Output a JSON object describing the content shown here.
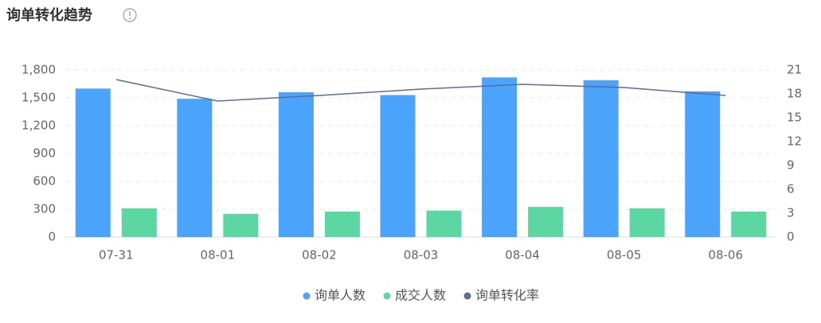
{
  "chart_data": {
    "type": "bar",
    "title": "询单转化趋势",
    "categories": [
      "07-31",
      "08-01",
      "08-02",
      "08-03",
      "08-04",
      "08-05",
      "08-06"
    ],
    "series": [
      {
        "name": "询单人数",
        "color": "#4ba3fb",
        "values": [
          1600,
          1490,
          1560,
          1530,
          1720,
          1690,
          1570
        ]
      },
      {
        "name": "成交人数",
        "color": "#5cd7a4",
        "values": [
          310,
          250,
          275,
          285,
          325,
          310,
          275
        ]
      },
      {
        "name": "询单转化率",
        "color": "#5b6e96",
        "type": "line",
        "axis": "y2",
        "values": [
          19.8,
          17.1,
          17.8,
          18.6,
          19.2,
          18.8,
          17.8
        ]
      }
    ],
    "ylim": [
      0,
      1800
    ],
    "yticks": [
      0,
      300,
      600,
      900,
      {
        "value": 1200,
        "label": "1,200"
      },
      {
        "value": 1500,
        "label": "1,500"
      },
      {
        "value": 1800,
        "label": "1,800"
      }
    ],
    "y2lim": [
      0,
      21
    ],
    "y2ticks": [
      0,
      3,
      6,
      9,
      12,
      15,
      18,
      21
    ],
    "grid": true,
    "legend": "bottom"
  }
}
